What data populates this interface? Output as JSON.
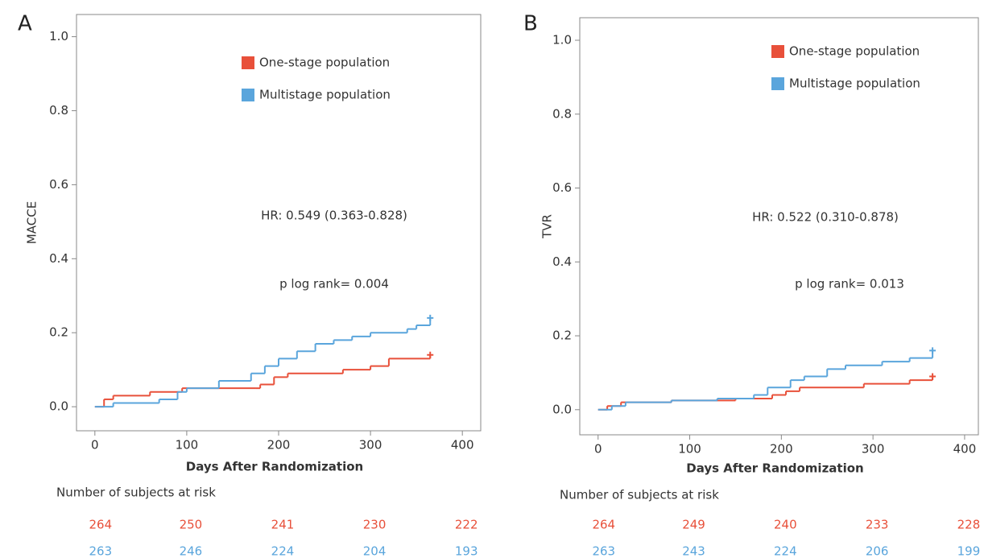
{
  "chart_data": [
    {
      "type": "line",
      "drawstyle": "steps-post",
      "panel": "A",
      "ylabel": "MACCE",
      "xlabel": "Days After Randomization",
      "xlim": [
        -20,
        420
      ],
      "ylim": [
        -0.065,
        1.06
      ],
      "xticks": [
        0,
        100,
        200,
        300,
        400
      ],
      "yticks": [
        {
          "value": 0,
          "label": "0.0"
        },
        0.2,
        0.4,
        0.6,
        0.8,
        {
          "value": 1,
          "label": "1.0"
        }
      ],
      "series": [
        {
          "name": "One-stage population",
          "color": "#e8503a",
          "x": [
            0,
            10,
            20,
            60,
            95,
            175,
            180,
            195,
            210,
            270,
            300,
            320,
            365
          ],
          "values": [
            0,
            0.02,
            0.03,
            0.04,
            0.05,
            0.05,
            0.06,
            0.08,
            0.09,
            0.1,
            0.11,
            0.13,
            0.14
          ]
        },
        {
          "name": "Multistage population",
          "color": "#5aa5dc",
          "x": [
            0,
            20,
            70,
            90,
            100,
            135,
            170,
            185,
            200,
            220,
            240,
            260,
            280,
            300,
            340,
            350,
            365
          ],
          "values": [
            0,
            0.01,
            0.02,
            0.04,
            0.05,
            0.07,
            0.09,
            0.11,
            0.13,
            0.15,
            0.17,
            0.18,
            0.19,
            0.2,
            0.21,
            0.22,
            0.24
          ]
        }
      ],
      "annotations": [
        "HR: 0.549 (0.363-0.828)",
        "p log rank= 0.004"
      ],
      "risk_table": {
        "title": "Number of subjects at risk",
        "rows": [
          [
            264,
            250,
            241,
            230,
            222
          ],
          [
            263,
            246,
            224,
            204,
            193
          ]
        ]
      }
    },
    {
      "type": "line",
      "drawstyle": "steps-post",
      "panel": "B",
      "ylabel": "TVR",
      "xlabel": "Days After Randomization",
      "xlim": [
        -20,
        415
      ],
      "ylim": [
        -0.068,
        1.061
      ],
      "xticks": [
        0,
        100,
        200,
        300,
        400
      ],
      "yticks": [
        {
          "value": 0,
          "label": "0.0"
        },
        0.2,
        0.4,
        0.6,
        0.8,
        {
          "value": 1,
          "label": "1.0"
        }
      ],
      "series": [
        {
          "name": "One-stage population",
          "color": "#e8503a",
          "x": [
            0,
            10,
            25,
            80,
            150,
            190,
            205,
            220,
            290,
            340,
            365
          ],
          "values": [
            0,
            0.01,
            0.02,
            0.025,
            0.03,
            0.04,
            0.05,
            0.06,
            0.07,
            0.08,
            0.09
          ]
        },
        {
          "name": "Multistage population",
          "color": "#5aa5dc",
          "x": [
            0,
            15,
            30,
            80,
            130,
            170,
            185,
            210,
            225,
            250,
            270,
            310,
            340,
            365
          ],
          "values": [
            0,
            0.01,
            0.02,
            0.025,
            0.03,
            0.04,
            0.06,
            0.08,
            0.09,
            0.11,
            0.12,
            0.13,
            0.14,
            0.16
          ]
        }
      ],
      "annotations": [
        "HR: 0.522 (0.310-0.878)",
        "p log rank= 0.013"
      ],
      "risk_table": {
        "title": "Number of subjects at risk",
        "rows": [
          [
            264,
            249,
            240,
            233,
            228
          ],
          [
            263,
            243,
            224,
            206,
            199
          ]
        ]
      }
    }
  ]
}
